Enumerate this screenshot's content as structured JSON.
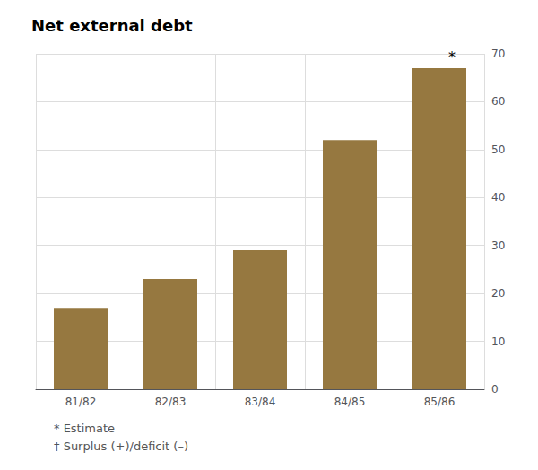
{
  "chart_data": {
    "type": "bar",
    "title": "Net external debt",
    "categories": [
      "81/82",
      "82/83",
      "83/84",
      "84/85",
      "85/86"
    ],
    "values": [
      17,
      23,
      29,
      52,
      67
    ],
    "color": "#967840",
    "ylim": [
      0,
      70
    ],
    "yticks": [
      0,
      10,
      20,
      30,
      40,
      50,
      60,
      70
    ],
    "grid": true,
    "annotations": [
      {
        "text": "*",
        "category": "85/86"
      }
    ],
    "footnotes": [
      "* Estimate",
      "† Surplus (+)/deficit (–)"
    ]
  }
}
